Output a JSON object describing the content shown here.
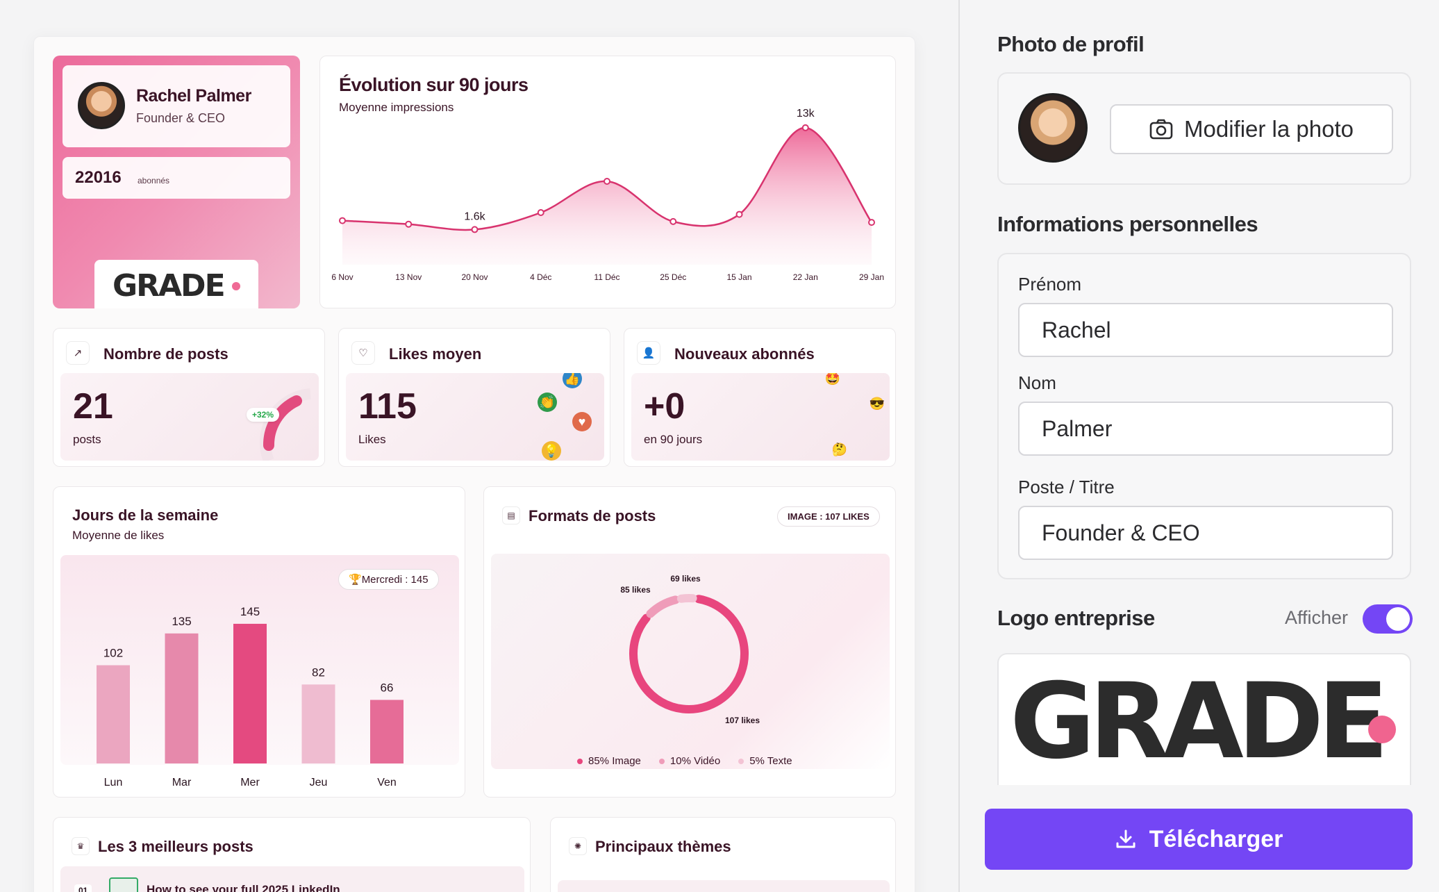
{
  "profile_card": {
    "name": "Rachel Palmer",
    "role": "Founder & CEO",
    "followers": "22016",
    "followers_label": "abonnés",
    "logo_text": "GRADE"
  },
  "evolution": {
    "title": "Évolution sur 90 jours",
    "subtitle": "Moyenne impressions",
    "labels": {
      "min": "1.6k",
      "max": "13k"
    }
  },
  "kpis": [
    {
      "title": "Nombre de posts",
      "icon": "trend-up-icon",
      "value": "21",
      "unit": "posts",
      "badge": "+32%"
    },
    {
      "title": "Likes moyen",
      "icon": "heart-icon",
      "value": "115",
      "unit": "Likes"
    },
    {
      "title": "Nouveaux abonnés",
      "icon": "user-plus-icon",
      "value": "+0",
      "unit": "en 90 jours"
    }
  ],
  "jours": {
    "title": "Jours de la semaine",
    "subtitle": "Moyenne de likes",
    "best_pill": "Mercredi : 145"
  },
  "formats": {
    "title": "Formats de posts",
    "pill": "IMAGE : 107 LIKES",
    "legend": [
      "85% Image",
      "10% Vidéo",
      "5% Texte"
    ],
    "labels": [
      "69 likes",
      "85 likes",
      "107 likes"
    ]
  },
  "best_posts": {
    "title": "Les 3 meilleurs posts",
    "rank": "01",
    "first_title": "How to see your full 2025 LinkedIn"
  },
  "themes": {
    "title": "Principaux thèmes"
  },
  "panel": {
    "photo_heading": "Photo de profil",
    "change_photo": "Modifier la photo",
    "info_heading": "Informations personnelles",
    "first_name_label": "Prénom",
    "first_name": "Rachel",
    "last_name_label": "Nom",
    "last_name": "Palmer",
    "title_label": "Poste / Titre",
    "title_value": "Founder & CEO",
    "logo_heading": "Logo entreprise",
    "show_label": "Afficher",
    "show_logo": true,
    "logo_text": "GRADE",
    "download": "Télécharger",
    "accent": "#7446f5"
  },
  "chart_data": [
    {
      "type": "area",
      "title": "Évolution sur 90 jours",
      "subtitle": "Moyenne impressions",
      "x": [
        "6 Nov",
        "13 Nov",
        "20 Nov",
        "4 Déc",
        "11 Déc",
        "25 Déc",
        "15 Jan",
        "22 Jan",
        "29 Jan"
      ],
      "values": [
        2.6,
        2.2,
        1.6,
        3.5,
        7.0,
        2.5,
        3.3,
        13.0,
        2.4
      ],
      "unit": "k",
      "color": "#e0457c"
    },
    {
      "type": "bar",
      "title": "Jours de la semaine",
      "subtitle": "Moyenne de likes",
      "categories": [
        "Lun",
        "Mar",
        "Mer",
        "Jeu",
        "Ven"
      ],
      "values": [
        102,
        135,
        145,
        82,
        66
      ],
      "colors": [
        "#eba6c0",
        "#e689ab",
        "#e44a80",
        "#efbcd0",
        "#e66c97"
      ],
      "ylim": [
        0,
        160
      ]
    },
    {
      "type": "pie",
      "title": "Formats de posts",
      "categories": [
        "Image",
        "Vidéo",
        "Texte"
      ],
      "values": [
        85,
        10,
        5
      ],
      "likes": [
        107,
        85,
        69
      ],
      "colors": [
        "#e8467e",
        "#ef9cb9",
        "#f3c3d4"
      ]
    }
  ]
}
